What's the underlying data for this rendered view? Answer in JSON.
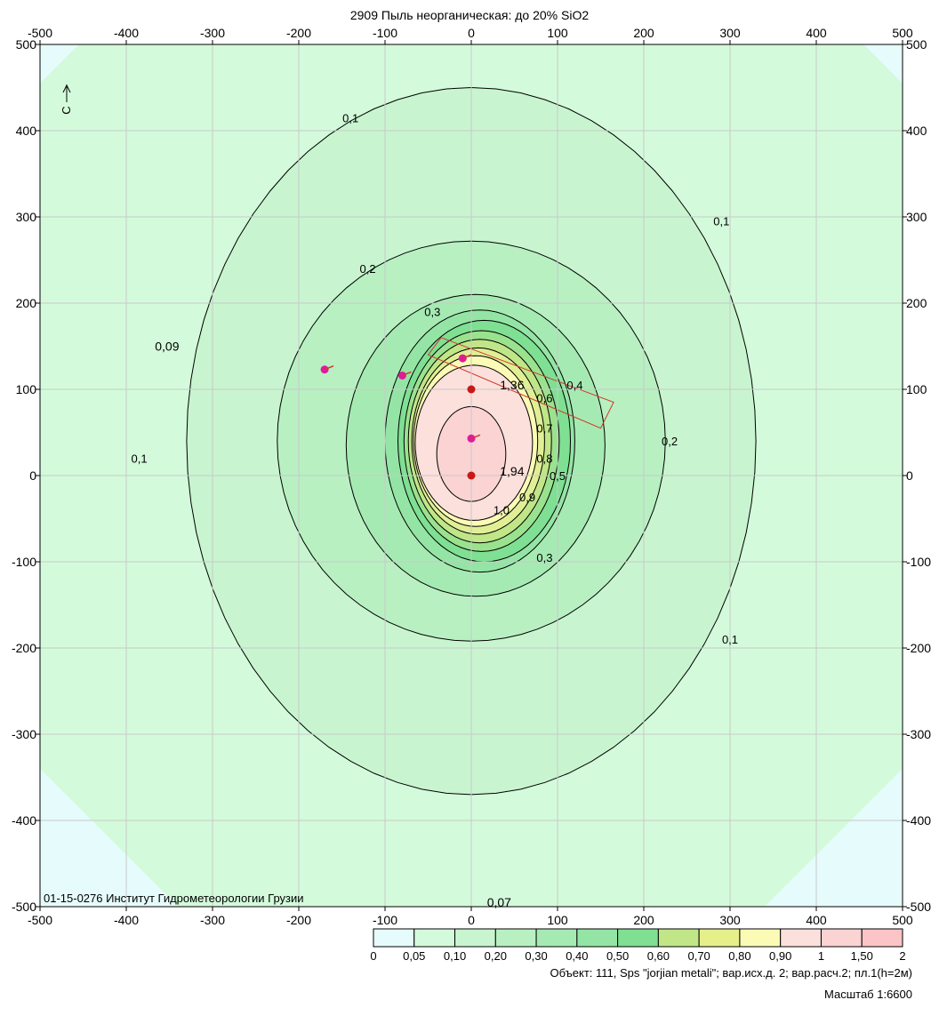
{
  "chart_data": {
    "type": "contour",
    "title": "2909 Пыль неорганическая: до 20% SiO2",
    "xlim": [
      -500,
      500
    ],
    "ylim": [
      -500,
      500
    ],
    "x_ticks": [
      "-500",
      "-400",
      "-300",
      "-200",
      "-100",
      "0",
      "100",
      "200",
      "300",
      "400",
      "500"
    ],
    "y_ticks": [
      "500",
      "400",
      "300",
      "200",
      "100",
      "0",
      "-100",
      "-200",
      "-300",
      "-400",
      "-500"
    ],
    "grid": true,
    "contour_levels": [
      "0.1",
      "0.2",
      "0.3",
      "0.4",
      "0.5",
      "0.6",
      "0.7",
      "0.8",
      "0.9",
      "1.0"
    ],
    "contour_labels": [
      {
        "text": "0,1",
        "x": -140,
        "y": 410
      },
      {
        "text": "0,1",
        "x": 290,
        "y": 290
      },
      {
        "text": "0,1",
        "x": -385,
        "y": 15
      },
      {
        "text": "0,1",
        "x": 300,
        "y": -195
      },
      {
        "text": "0,2",
        "x": -120,
        "y": 235
      },
      {
        "text": "0,2",
        "x": 230,
        "y": 35
      },
      {
        "text": "0,3",
        "x": -45,
        "y": 185
      },
      {
        "text": "0,3",
        "x": 85,
        "y": -100
      },
      {
        "text": "0,4",
        "x": 120,
        "y": 100
      },
      {
        "text": "0,5",
        "x": 100,
        "y": -5
      },
      {
        "text": "0,6",
        "x": 85,
        "y": 85
      },
      {
        "text": "0,7",
        "x": 85,
        "y": 50
      },
      {
        "text": "0,8",
        "x": 85,
        "y": 15
      },
      {
        "text": "0,9",
        "x": 65,
        "y": -30
      },
      {
        "text": "1,0",
        "x": 35,
        "y": -45
      }
    ],
    "point_labels": [
      {
        "text": "0,09",
        "x": -375,
        "y": 150
      },
      {
        "text": "1,36",
        "x": 25,
        "y": 105
      },
      {
        "text": "1,94",
        "x": 25,
        "y": 5
      },
      {
        "text": "0,07",
        "x": 10,
        "y": -495
      }
    ],
    "maxima_points": [
      {
        "x": 0,
        "y": 100
      },
      {
        "x": 0,
        "y": 0
      }
    ],
    "source_points": [
      {
        "x": -170,
        "y": 123
      },
      {
        "x": -80,
        "y": 116
      },
      {
        "x": -10,
        "y": 136
      },
      {
        "x": 0,
        "y": 43
      }
    ],
    "legend": {
      "ticks": [
        "0",
        "0,05",
        "0,10",
        "0,20",
        "0,30",
        "0,40",
        "0,50",
        "0,60",
        "0,70",
        "0,80",
        "0,90",
        "1",
        "1,50",
        "2"
      ],
      "colors": [
        "#e6fbfb",
        "#d3fbdb",
        "#c8f5cf",
        "#b8f0c2",
        "#a6eab3",
        "#94e5a5",
        "#7fdf93",
        "#c0e688",
        "#e6f08a",
        "#fbfbb6",
        "#fbe0dc",
        "#fbd3d3",
        "#fbc5c8"
      ]
    },
    "colors": {
      "background_far": "#e6fbfb",
      "band_005": "#d3fbdb",
      "band_010": "#c8f5cf",
      "band_020": "#b8f0c2",
      "band_030": "#a6eab3",
      "band_040": "#94e5a5",
      "band_050": "#7fdf93",
      "band_060": "#9be28e",
      "band_070": "#c0e688",
      "band_080": "#e0ef95",
      "band_090": "#fbfbb6",
      "band_100": "#fbe0dc",
      "band_150": "#fbd3d3",
      "source_rect": "#d03a2a",
      "maxima": "#c81818",
      "source": "#e01aa0"
    }
  },
  "north_label": "С",
  "footer": {
    "watermark": "01-15-0276 Институт Гидрометеорологии Грузии",
    "object_line": "Объект: 111, Sps \"jorjian metali\"; вар.исх.д. 2; вар.расч.2; пл.1(h=2м)",
    "scale_line": "Масштаб 1:6600"
  }
}
